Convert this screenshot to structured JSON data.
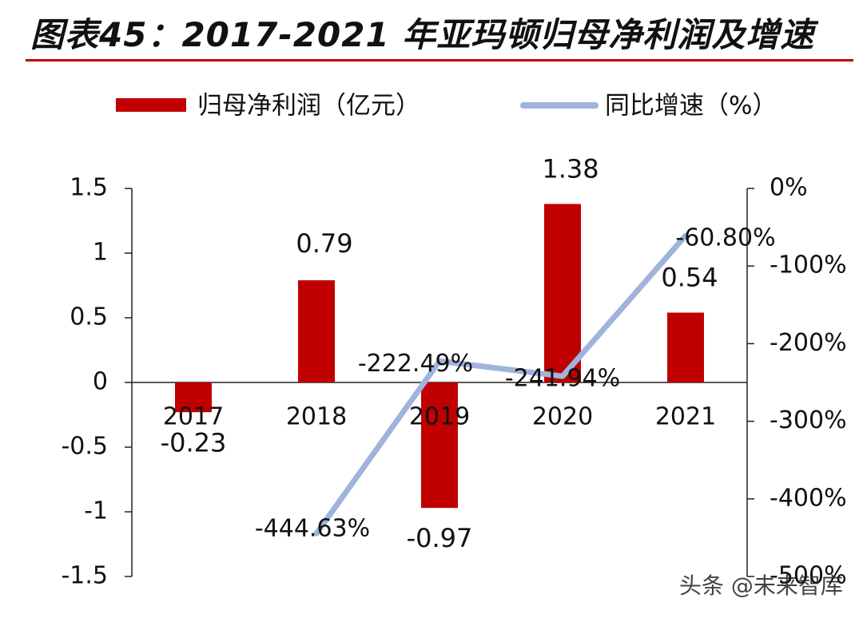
{
  "figure": {
    "title": "图表45：2017-2021 年亚玛顿归母净利润及增速"
  },
  "watermark": "头条 @未来智库",
  "chart_data": {
    "type": "bar",
    "categories": [
      "2017",
      "2018",
      "2019",
      "2020",
      "2021"
    ],
    "series": [
      {
        "name": "归母净利润（亿元）",
        "type": "bar",
        "axis": "left",
        "color": "#c00000",
        "values": [
          -0.23,
          0.79,
          -0.97,
          1.38,
          0.54
        ],
        "labels": [
          "-0.23",
          "0.79",
          "-0.97",
          "1.38",
          "0.54"
        ]
      },
      {
        "name": "同比增速（%）",
        "type": "line",
        "axis": "right",
        "color": "#9fb3dd",
        "values": [
          null,
          -444.63,
          -222.49,
          -241.94,
          -60.8
        ],
        "labels": [
          "",
          "-444.63%",
          "-222.49%",
          "-241.94%",
          "-60.80%"
        ]
      }
    ],
    "left_axis": {
      "ylim": [
        -1.5,
        1.5
      ],
      "ticks": [
        1.5,
        1,
        0.5,
        0,
        -0.5,
        -1,
        -1.5
      ],
      "tick_labels": [
        "1.5",
        "1",
        "0.5",
        "0",
        "-0.5",
        "-1",
        "-1.5"
      ]
    },
    "right_axis": {
      "ylim": [
        -500,
        0
      ],
      "ticks": [
        0,
        -100,
        -200,
        -300,
        -400,
        -500
      ],
      "tick_labels": [
        "0%",
        "-100%",
        "-200%",
        "-300%",
        "-400%",
        "-500%"
      ]
    },
    "legend_position": "top",
    "grid": false
  }
}
